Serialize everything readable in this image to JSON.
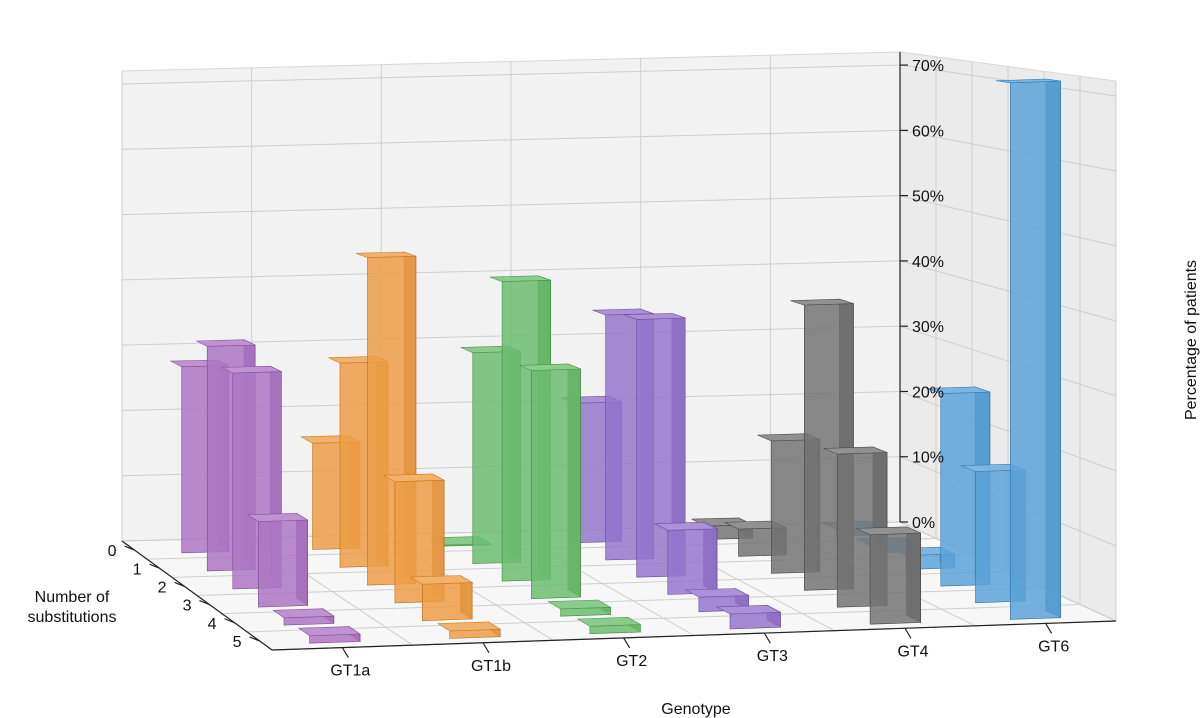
{
  "chart_data": {
    "type": "bar",
    "projection": "3d",
    "xlabel": "Genotype",
    "ylabel": "Number of substitutions",
    "zlabel": "Percentage of patients",
    "categories": [
      "GT1a",
      "GT1b",
      "GT2",
      "GT3",
      "GT4",
      "GT6"
    ],
    "substitutions": [
      "0",
      "1",
      "2",
      "3",
      "4",
      "5"
    ],
    "zticks": [
      "0%",
      "10%",
      "20%",
      "30%",
      "40%",
      "50%",
      "60%",
      "70%"
    ],
    "zlim": [
      0,
      72
    ],
    "grid": true,
    "series": [
      {
        "genotype": "GT1a",
        "color": "#9b59b6",
        "values": [
          28,
          33,
          31,
          12,
          1,
          1
        ]
      },
      {
        "genotype": "GT1b",
        "color": "#e8891f",
        "values": [
          16,
          30,
          47,
          17,
          5,
          1
        ]
      },
      {
        "genotype": "GT2",
        "color": "#4caf50",
        "values": [
          0,
          31,
          43,
          32,
          1,
          1
        ]
      },
      {
        "genotype": "GT3",
        "color": "#7e57c2",
        "values": [
          21,
          36,
          37,
          9,
          2,
          2
        ]
      },
      {
        "genotype": "GT4",
        "color": "#555555",
        "values": [
          2,
          4,
          19,
          40,
          21,
          12
        ]
      },
      {
        "genotype": "GT6",
        "color": "#3a8fd0",
        "values": [
          1,
          1,
          2,
          27,
          18,
          72
        ]
      }
    ]
  }
}
